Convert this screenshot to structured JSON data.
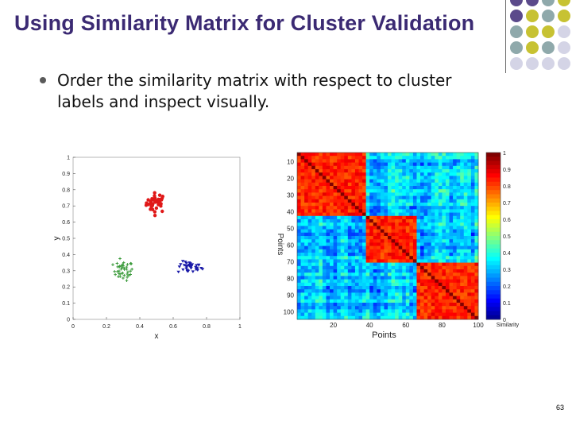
{
  "slide": {
    "title": "Using Similarity Matrix for Cluster Validation",
    "bullet": "Order the similarity matrix with respect to cluster labels and inspect visually.",
    "page_number": "63"
  },
  "colors": {
    "title": "#3b2a73",
    "deco_purple": "#5b4a8b",
    "deco_olive": "#c7c232",
    "deco_teal": "#8fa9ab",
    "deco_lavender": "#d4d4e6"
  },
  "chart_data": [
    {
      "type": "scatter",
      "title": "",
      "xlabel": "x",
      "ylabel": "y",
      "xlim": [
        0,
        1
      ],
      "ylim": [
        0,
        1
      ],
      "xticks": [
        "0",
        "0.2",
        "0.4",
        "0.6",
        "0.8",
        "1"
      ],
      "yticks": [
        "0",
        "0.1",
        "0.2",
        "0.3",
        "0.4",
        "0.5",
        "0.6",
        "0.7",
        "0.8",
        "0.9",
        "1"
      ],
      "series": [
        {
          "color": "#e01818",
          "marker": "circle",
          "center": [
            0.5,
            0.72
          ],
          "spread": [
            0.05,
            0.05
          ],
          "points": 38
        },
        {
          "color": "#3a9a3a",
          "marker": "plus",
          "center": [
            0.3,
            0.3
          ],
          "spread": [
            0.05,
            0.05
          ],
          "points": 40
        },
        {
          "color": "#1a1aa8",
          "marker": "triangle",
          "center": [
            0.7,
            0.32
          ],
          "spread": [
            0.06,
            0.03
          ],
          "points": 36
        }
      ]
    },
    {
      "type": "heatmap",
      "xlabel": "Points",
      "ylabel": "Points",
      "xticks": [
        "20",
        "40",
        "60",
        "80",
        "100"
      ],
      "yticks": [
        "10",
        "20",
        "30",
        "40",
        "50",
        "60",
        "70",
        "80",
        "90",
        "100"
      ],
      "xlim": [
        0,
        100
      ],
      "ylim": [
        0,
        100
      ],
      "clusters": [
        [
          0,
          37
        ],
        [
          37,
          65
        ],
        [
          65,
          100
        ]
      ],
      "within_cluster_similarity": 0.9,
      "between_cluster_similarity": 0.2,
      "colorbar": {
        "label": "Similarity",
        "range": [
          0,
          1
        ],
        "ticks": [
          "0",
          "0.1",
          "0.2",
          "0.3",
          "0.4",
          "0.5",
          "0.6",
          "0.7",
          "0.8",
          "0.9",
          "1"
        ]
      }
    }
  ]
}
